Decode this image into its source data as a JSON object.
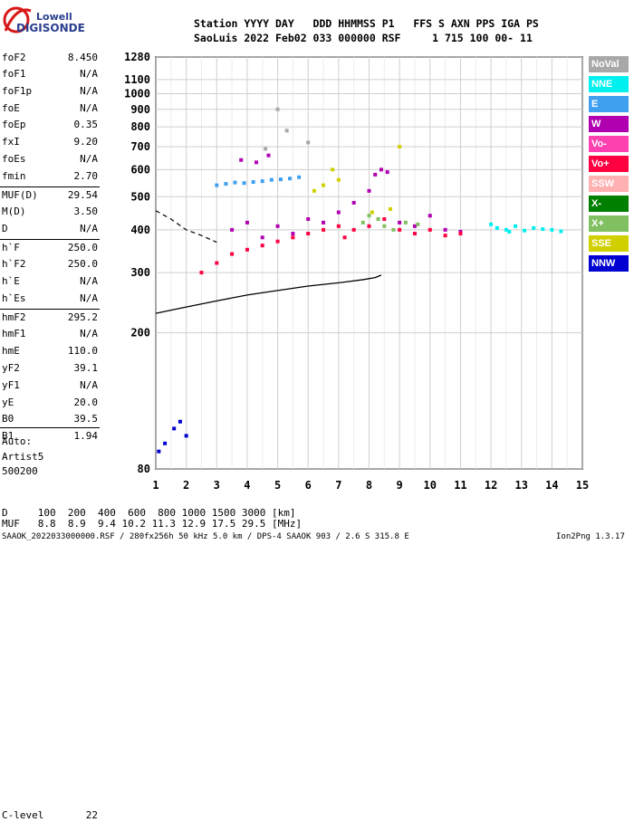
{
  "brand": {
    "line1": "Lowell",
    "line2": "DIGISONDE"
  },
  "header": {
    "row1": "Station YYYY DAY   DDD HHMMSS P1   FFS S AXN PPS IGA PS",
    "row2": "SaoLuis 2022 Feb02 033 000000 RSF     1 715 100 00- 11"
  },
  "params": [
    {
      "k": "foF2",
      "v": "8.450"
    },
    {
      "k": "foF1",
      "v": "N/A"
    },
    {
      "k": "foF1p",
      "v": "N/A"
    },
    {
      "k": "foE",
      "v": "N/A"
    },
    {
      "k": "foEp",
      "v": "0.35"
    },
    {
      "k": "fxI",
      "v": "9.20"
    },
    {
      "k": "foEs",
      "v": "N/A"
    },
    {
      "k": "fmin",
      "v": "2.70"
    },
    {
      "k": "MUF(D)",
      "v": "29.54"
    },
    {
      "k": "M(D)",
      "v": "3.50"
    },
    {
      "k": "D",
      "v": "N/A"
    },
    {
      "k": "h`F",
      "v": "250.0"
    },
    {
      "k": "h`F2",
      "v": "250.0"
    },
    {
      "k": "h`E",
      "v": "N/A"
    },
    {
      "k": "h`Es",
      "v": "N/A"
    },
    {
      "k": "hmF2",
      "v": "295.2"
    },
    {
      "k": "hmF1",
      "v": "N/A"
    },
    {
      "k": "hmE",
      "v": "110.0"
    },
    {
      "k": "yF2",
      "v": "39.1"
    },
    {
      "k": "yF1",
      "v": "N/A"
    },
    {
      "k": "yE",
      "v": "20.0"
    },
    {
      "k": "B0",
      "v": "39.5"
    },
    {
      "k": "B1",
      "v": "1.94"
    },
    {
      "k": "C-level",
      "v": "22"
    }
  ],
  "autoscale": {
    "line1": "Auto:",
    "line2": "Artist5",
    "line3": "500200"
  },
  "legend": [
    {
      "label": "NoVal",
      "color": "#a8a8a8"
    },
    {
      "label": "NNE",
      "color": "#00f0f0"
    },
    {
      "label": "E",
      "color": "#3fa0f0"
    },
    {
      "label": "W",
      "color": "#b000b0"
    },
    {
      "label": "Vo-",
      "color": "#ff40b0"
    },
    {
      "label": "Vo+",
      "color": "#ff0040"
    },
    {
      "label": "SSW",
      "color": "#ffb0b0"
    },
    {
      "label": "X-",
      "color": "#008000"
    },
    {
      "label": "X+",
      "color": "#80c060"
    },
    {
      "label": "SSE",
      "color": "#d0d000"
    },
    {
      "label": "NNW",
      "color": "#0000d0"
    }
  ],
  "footer": {
    "d_row": "D     100  200  400  600  800 1000 1500 3000 [km]",
    "muf_row": "MUF   8.8  8.9  9.4 10.2 11.3 12.9 17.5 29.5 [MHz]",
    "file_info": "SAAOK_2022033000000.RSF / 280fx256h 50 kHz 5.0 km / DPS-4 SAAOK 903 / 2.6 S 315.8 E",
    "version": "Ion2Png 1.3.17"
  },
  "chart_data": {
    "type": "scatter",
    "xlabel": "",
    "ylabel": "",
    "xlim": [
      1,
      15
    ],
    "ylim": [
      80,
      1280
    ],
    "x_ticks": [
      "1",
      "2",
      "3",
      "4",
      "5",
      "6",
      "7",
      "8",
      "9",
      "10",
      "11",
      "12",
      "13",
      "14",
      "15"
    ],
    "y_ticks": [
      "80",
      "200",
      "300",
      "400",
      "500",
      "600",
      "700",
      "800",
      "900",
      "1000",
      "1100",
      "1280"
    ],
    "y_tick_values": [
      80,
      200,
      300,
      400,
      500,
      600,
      700,
      800,
      900,
      1000,
      1100,
      1280
    ],
    "grid": true,
    "legend_position": "right",
    "series": [
      {
        "name": "NNE",
        "color": "#00f0f0",
        "points": [
          [
            12.2,
            405
          ],
          [
            12.5,
            400
          ],
          [
            12.8,
            410
          ],
          [
            13.1,
            398
          ],
          [
            13.4,
            405
          ],
          [
            13.7,
            402
          ],
          [
            14.0,
            400
          ],
          [
            14.3,
            396
          ],
          [
            12.0,
            415
          ],
          [
            12.6,
            395
          ]
        ]
      },
      {
        "name": "E",
        "color": "#3fa0f0",
        "points": [
          [
            3.0,
            540
          ],
          [
            3.3,
            545
          ],
          [
            3.6,
            550
          ],
          [
            3.9,
            548
          ],
          [
            4.2,
            552
          ],
          [
            4.5,
            555
          ],
          [
            4.8,
            560
          ],
          [
            5.1,
            562
          ],
          [
            5.4,
            565
          ],
          [
            5.7,
            570
          ]
        ]
      },
      {
        "name": "W",
        "color": "#b000b0",
        "points": [
          [
            3.5,
            400
          ],
          [
            4.0,
            420
          ],
          [
            4.5,
            380
          ],
          [
            5.0,
            410
          ],
          [
            5.5,
            390
          ],
          [
            6.0,
            430
          ],
          [
            6.5,
            420
          ],
          [
            7.0,
            450
          ],
          [
            7.5,
            480
          ],
          [
            8.0,
            520
          ],
          [
            8.2,
            580
          ],
          [
            8.4,
            600
          ],
          [
            8.6,
            590
          ],
          [
            9.0,
            420
          ],
          [
            9.5,
            410
          ],
          [
            10.0,
            440
          ],
          [
            10.5,
            400
          ],
          [
            11.0,
            395
          ],
          [
            3.8,
            640
          ],
          [
            4.3,
            630
          ],
          [
            4.7,
            660
          ]
        ]
      },
      {
        "name": "Vo+",
        "color": "#ff0040",
        "points": [
          [
            2.5,
            300
          ],
          [
            3.0,
            320
          ],
          [
            3.5,
            340
          ],
          [
            4.0,
            350
          ],
          [
            4.5,
            360
          ],
          [
            5.0,
            370
          ],
          [
            5.5,
            380
          ],
          [
            6.0,
            390
          ],
          [
            6.5,
            400
          ],
          [
            7.0,
            410
          ],
          [
            7.2,
            380
          ],
          [
            7.5,
            400
          ],
          [
            8.0,
            410
          ],
          [
            8.5,
            430
          ],
          [
            9.0,
            400
          ],
          [
            9.5,
            390
          ],
          [
            10.0,
            400
          ],
          [
            10.5,
            385
          ],
          [
            11.0,
            390
          ]
        ]
      },
      {
        "name": "X+",
        "color": "#80c060",
        "points": [
          [
            7.8,
            420
          ],
          [
            8.0,
            440
          ],
          [
            8.3,
            430
          ],
          [
            8.5,
            410
          ],
          [
            8.8,
            400
          ],
          [
            9.2,
            420
          ],
          [
            9.6,
            415
          ]
        ]
      },
      {
        "name": "SSE",
        "color": "#d0d000",
        "points": [
          [
            6.2,
            520
          ],
          [
            6.5,
            540
          ],
          [
            6.8,
            600
          ],
          [
            7.0,
            560
          ],
          [
            8.1,
            450
          ],
          [
            8.7,
            460
          ],
          [
            9.0,
            700
          ]
        ]
      },
      {
        "name": "NNW",
        "color": "#0000d0",
        "points": [
          [
            1.1,
            90
          ],
          [
            1.3,
            95
          ],
          [
            1.6,
            105
          ],
          [
            1.8,
            110
          ],
          [
            2.0,
            100
          ]
        ]
      },
      {
        "name": "NoVal",
        "color": "#a8a8a8",
        "points": [
          [
            5.0,
            900
          ],
          [
            5.3,
            780
          ],
          [
            4.6,
            690
          ],
          [
            6.0,
            720
          ]
        ]
      }
    ],
    "profile_line": [
      [
        1,
        228
      ],
      [
        2,
        238
      ],
      [
        3,
        248
      ],
      [
        4,
        258
      ],
      [
        5,
        266
      ],
      [
        6,
        274
      ],
      [
        7,
        280
      ],
      [
        7.8,
        286
      ],
      [
        8.2,
        290
      ],
      [
        8.4,
        295
      ]
    ],
    "dashed_line": [
      [
        1,
        455
      ],
      [
        1.5,
        430
      ],
      [
        2,
        400
      ],
      [
        2.5,
        385
      ],
      [
        3,
        368
      ]
    ]
  }
}
